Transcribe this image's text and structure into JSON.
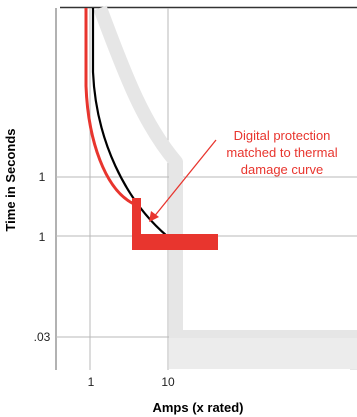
{
  "chart_data": {
    "type": "line",
    "title": "",
    "xlabel": "Amps (x rated)",
    "ylabel": "Time in Seconds",
    "x_ticks": [
      "1",
      "10"
    ],
    "y_ticks": [
      "1",
      "1",
      ".03"
    ],
    "annotation": [
      "Digital protection",
      "matched to thermal",
      "damage curve"
    ],
    "grid": true,
    "series": [
      {
        "color": "#000000"
      },
      {
        "color": "#e8352e"
      },
      {
        "color": "#e8352e"
      },
      {
        "color": "#e0e0e0"
      }
    ],
    "colors": {
      "grid": "#b9b9b9",
      "frame": "#333333",
      "band": "#e6e6e6",
      "accent": "#e8352e",
      "curve": "#000000"
    }
  }
}
